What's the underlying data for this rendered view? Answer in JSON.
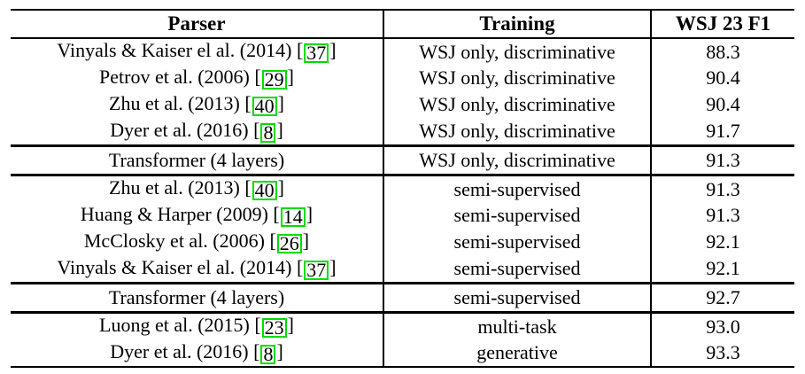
{
  "table": {
    "columns": [
      {
        "label": "Parser"
      },
      {
        "label": "Training"
      },
      {
        "label": "WSJ 23 F1"
      }
    ],
    "rows": [
      {
        "pre": "Vinyals & Kaiser el al. (2014) [",
        "cite": "37",
        "post": "]",
        "training": "WSJ only, discriminative",
        "f1": "88.3"
      },
      {
        "pre": "Petrov et al. (2006) [",
        "cite": "29",
        "post": "]",
        "training": "WSJ only, discriminative",
        "f1": "90.4"
      },
      {
        "pre": "Zhu et al. (2013) [",
        "cite": "40",
        "post": "]",
        "training": "WSJ only, discriminative",
        "f1": "90.4"
      },
      {
        "pre": "Dyer et al. (2016) [",
        "cite": "8",
        "post": "]",
        "training": "WSJ only, discriminative",
        "f1": "91.7"
      },
      {
        "pre": "Transformer (4 layers)",
        "training": "WSJ only, discriminative",
        "f1": "91.3"
      },
      {
        "pre": "Zhu et al. (2013) [",
        "cite": "40",
        "post": "]",
        "training": "semi-supervised",
        "f1": "91.3"
      },
      {
        "pre": "Huang & Harper (2009) [",
        "cite": "14",
        "post": "]",
        "training": "semi-supervised",
        "f1": "91.3"
      },
      {
        "pre": "McClosky et al. (2006) [",
        "cite": "26",
        "post": "]",
        "training": "semi-supervised",
        "f1": "92.1"
      },
      {
        "pre": "Vinyals & Kaiser el al. (2014) [",
        "cite": "37",
        "post": "]",
        "training": "semi-supervised",
        "f1": "92.1"
      },
      {
        "pre": "Transformer (4 layers)",
        "training": "semi-supervised",
        "f1": "92.7"
      },
      {
        "pre": "Luong et al. (2015) [",
        "cite": "23",
        "post": "]",
        "training": "multi-task",
        "f1": "93.0"
      },
      {
        "pre": "Dyer et al. (2016) [",
        "cite": "8",
        "post": "]",
        "training": "generative",
        "f1": "93.3"
      }
    ]
  },
  "colors": {
    "citation_box_green": "#00dd00",
    "rule_black": "#000000"
  }
}
